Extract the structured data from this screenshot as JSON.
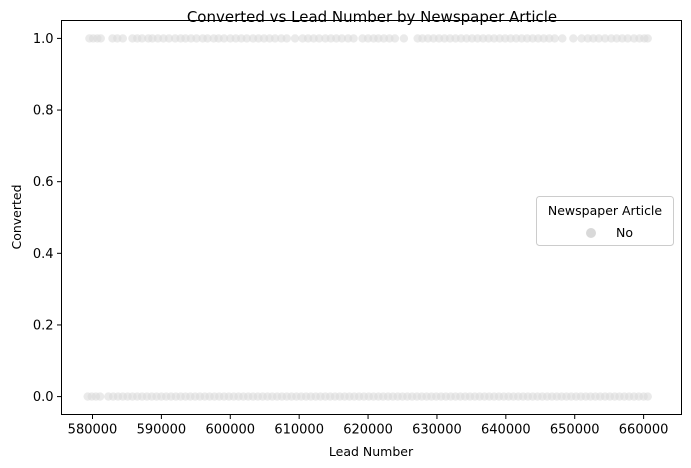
{
  "chart_data": {
    "type": "scatter",
    "title": "Converted vs Lead Number by Newspaper Article",
    "xlabel": "Lead Number",
    "ylabel": "Converted",
    "xlim": [
      575500,
      665500
    ],
    "ylim": [
      -0.05,
      1.05
    ],
    "x_ticks": [
      580000,
      590000,
      600000,
      610000,
      620000,
      630000,
      640000,
      650000,
      660000
    ],
    "y_ticks": [
      0.0,
      0.2,
      0.4,
      0.6,
      0.8,
      1.0
    ],
    "x_tick_labels": [
      "580000",
      "590000",
      "600000",
      "610000",
      "620000",
      "630000",
      "640000",
      "650000",
      "660000"
    ],
    "y_tick_labels": [
      "0.0",
      "0.2",
      "0.4",
      "0.6",
      "0.8",
      "1.0"
    ],
    "grid": false,
    "legend": {
      "title": "Newspaper Article",
      "placement": "center-right",
      "entries": [
        {
          "label": "No",
          "color": "#d9d9d9"
        }
      ]
    },
    "series": [
      {
        "name": "No",
        "color": "#d9d9d9",
        "points": [
          [
            579550,
            1
          ],
          [
            580100,
            1
          ],
          [
            580700,
            1
          ],
          [
            581200,
            1
          ],
          [
            582900,
            1
          ],
          [
            583600,
            1
          ],
          [
            584400,
            1
          ],
          [
            585800,
            1
          ],
          [
            586500,
            1
          ],
          [
            587200,
            1
          ],
          [
            588100,
            1
          ],
          [
            588700,
            1
          ],
          [
            589500,
            1
          ],
          [
            590300,
            1
          ],
          [
            591100,
            1
          ],
          [
            592000,
            1
          ],
          [
            592800,
            1
          ],
          [
            593500,
            1
          ],
          [
            594300,
            1
          ],
          [
            595100,
            1
          ],
          [
            596000,
            1
          ],
          [
            596700,
            1
          ],
          [
            597600,
            1
          ],
          [
            598300,
            1
          ],
          [
            599100,
            1
          ],
          [
            600000,
            1
          ],
          [
            600800,
            1
          ],
          [
            601600,
            1
          ],
          [
            602400,
            1
          ],
          [
            603300,
            1
          ],
          [
            604100,
            1
          ],
          [
            604900,
            1
          ],
          [
            605700,
            1
          ],
          [
            606500,
            1
          ],
          [
            607400,
            1
          ],
          [
            608200,
            1
          ],
          [
            609400,
            1
          ],
          [
            610500,
            1
          ],
          [
            611300,
            1
          ],
          [
            612100,
            1
          ],
          [
            612900,
            1
          ],
          [
            613800,
            1
          ],
          [
            614600,
            1
          ],
          [
            615400,
            1
          ],
          [
            616200,
            1
          ],
          [
            617100,
            1
          ],
          [
            617900,
            1
          ],
          [
            619200,
            1
          ],
          [
            620000,
            1
          ],
          [
            620800,
            1
          ],
          [
            621500,
            1
          ],
          [
            622300,
            1
          ],
          [
            623100,
            1
          ],
          [
            623900,
            1
          ],
          [
            625200,
            1
          ],
          [
            627200,
            1
          ],
          [
            627900,
            1
          ],
          [
            628700,
            1
          ],
          [
            629500,
            1
          ],
          [
            630300,
            1
          ],
          [
            631100,
            1
          ],
          [
            631900,
            1
          ],
          [
            632700,
            1
          ],
          [
            633500,
            1
          ],
          [
            634300,
            1
          ],
          [
            635100,
            1
          ],
          [
            635900,
            1
          ],
          [
            636700,
            1
          ],
          [
            637500,
            1
          ],
          [
            638300,
            1
          ],
          [
            639100,
            1
          ],
          [
            639900,
            1
          ],
          [
            640700,
            1
          ],
          [
            641500,
            1
          ],
          [
            642300,
            1
          ],
          [
            643100,
            1
          ],
          [
            643900,
            1
          ],
          [
            644700,
            1
          ],
          [
            645500,
            1
          ],
          [
            646300,
            1
          ],
          [
            647100,
            1
          ],
          [
            648200,
            1
          ],
          [
            649800,
            1
          ],
          [
            651000,
            1
          ],
          [
            651900,
            1
          ],
          [
            652700,
            1
          ],
          [
            653500,
            1
          ],
          [
            654400,
            1
          ],
          [
            655300,
            1
          ],
          [
            656100,
            1
          ],
          [
            656900,
            1
          ],
          [
            657700,
            1
          ],
          [
            658600,
            1
          ],
          [
            659400,
            1
          ],
          [
            660100,
            1
          ],
          [
            660600,
            1
          ],
          [
            579300,
            0
          ],
          [
            579900,
            0
          ],
          [
            580500,
            0
          ],
          [
            581100,
            0
          ],
          [
            582300,
            0
          ],
          [
            583000,
            0
          ],
          [
            583700,
            0
          ],
          [
            584400,
            0
          ],
          [
            585100,
            0
          ],
          [
            585800,
            0
          ],
          [
            586500,
            0
          ],
          [
            587200,
            0
          ],
          [
            587900,
            0
          ],
          [
            588600,
            0
          ],
          [
            589300,
            0
          ],
          [
            590000,
            0
          ],
          [
            590700,
            0
          ],
          [
            591400,
            0
          ],
          [
            592100,
            0
          ],
          [
            592800,
            0
          ],
          [
            593500,
            0
          ],
          [
            594200,
            0
          ],
          [
            594900,
            0
          ],
          [
            595600,
            0
          ],
          [
            596300,
            0
          ],
          [
            597000,
            0
          ],
          [
            597700,
            0
          ],
          [
            598400,
            0
          ],
          [
            599100,
            0
          ],
          [
            599800,
            0
          ],
          [
            600500,
            0
          ],
          [
            601200,
            0
          ],
          [
            601900,
            0
          ],
          [
            602600,
            0
          ],
          [
            603300,
            0
          ],
          [
            604000,
            0
          ],
          [
            604700,
            0
          ],
          [
            605400,
            0
          ],
          [
            606100,
            0
          ],
          [
            606800,
            0
          ],
          [
            607500,
            0
          ],
          [
            608200,
            0
          ],
          [
            608900,
            0
          ],
          [
            609600,
            0
          ],
          [
            610300,
            0
          ],
          [
            611000,
            0
          ],
          [
            611700,
            0
          ],
          [
            612400,
            0
          ],
          [
            613100,
            0
          ],
          [
            613800,
            0
          ],
          [
            614500,
            0
          ],
          [
            615200,
            0
          ],
          [
            615900,
            0
          ],
          [
            616600,
            0
          ],
          [
            617300,
            0
          ],
          [
            618000,
            0
          ],
          [
            618700,
            0
          ],
          [
            619400,
            0
          ],
          [
            620100,
            0
          ],
          [
            620800,
            0
          ],
          [
            621500,
            0
          ],
          [
            622200,
            0
          ],
          [
            622900,
            0
          ],
          [
            623600,
            0
          ],
          [
            624300,
            0
          ],
          [
            625000,
            0
          ],
          [
            625700,
            0
          ],
          [
            626400,
            0
          ],
          [
            627100,
            0
          ],
          [
            627800,
            0
          ],
          [
            628500,
            0
          ],
          [
            629200,
            0
          ],
          [
            629900,
            0
          ],
          [
            630600,
            0
          ],
          [
            631300,
            0
          ],
          [
            632000,
            0
          ],
          [
            632700,
            0
          ],
          [
            633400,
            0
          ],
          [
            634100,
            0
          ],
          [
            634800,
            0
          ],
          [
            635500,
            0
          ],
          [
            636200,
            0
          ],
          [
            636900,
            0
          ],
          [
            637600,
            0
          ],
          [
            638300,
            0
          ],
          [
            639000,
            0
          ],
          [
            639700,
            0
          ],
          [
            640400,
            0
          ],
          [
            641100,
            0
          ],
          [
            641800,
            0
          ],
          [
            642500,
            0
          ],
          [
            643200,
            0
          ],
          [
            643900,
            0
          ],
          [
            644600,
            0
          ],
          [
            645300,
            0
          ],
          [
            646000,
            0
          ],
          [
            646700,
            0
          ],
          [
            647400,
            0
          ],
          [
            648100,
            0
          ],
          [
            648800,
            0
          ],
          [
            649500,
            0
          ],
          [
            650200,
            0
          ],
          [
            650900,
            0
          ],
          [
            651600,
            0
          ],
          [
            652300,
            0
          ],
          [
            653000,
            0
          ],
          [
            653700,
            0
          ],
          [
            654400,
            0
          ],
          [
            655100,
            0
          ],
          [
            655800,
            0
          ],
          [
            656500,
            0
          ],
          [
            657200,
            0
          ],
          [
            657900,
            0
          ],
          [
            658600,
            0
          ],
          [
            659300,
            0
          ],
          [
            660000,
            0
          ],
          [
            660600,
            0
          ]
        ]
      }
    ]
  }
}
